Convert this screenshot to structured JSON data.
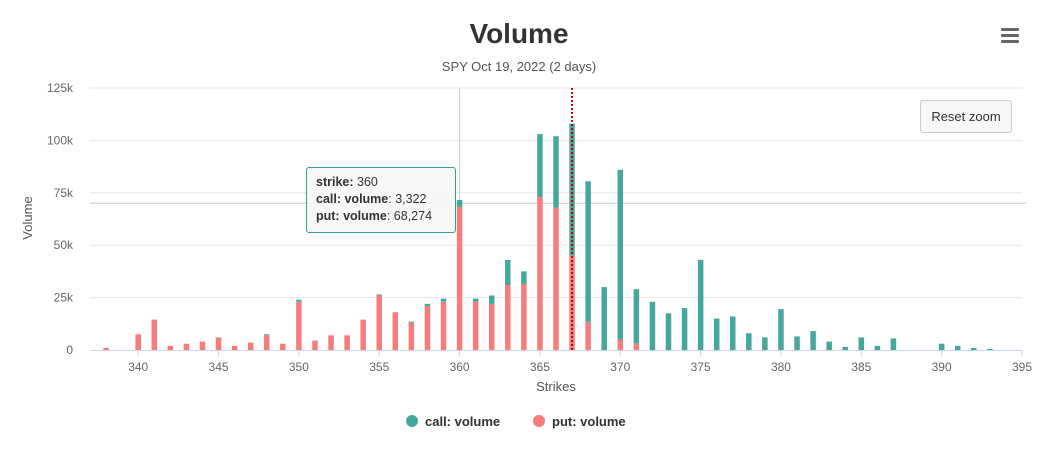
{
  "header": {
    "title": "Volume",
    "subtitle": "SPY Oct 19, 2022 (2 days)",
    "menu_icon": "hamburger-menu-icon",
    "reset_zoom_label": "Reset zoom"
  },
  "colors": {
    "call": "#46a89b",
    "put": "#f67d7c",
    "grid": "#e6e6e6",
    "marker": "#cc0000",
    "crosshair": "#cccccc"
  },
  "chart_data": {
    "type": "bar",
    "stacked": true,
    "title": "Volume",
    "subtitle": "SPY Oct 19, 2022 (2 days)",
    "xlabel": "Strikes",
    "ylabel": "Volume",
    "xlim": [
      337,
      395
    ],
    "ylim": [
      0,
      125000
    ],
    "x_ticks": [
      340,
      345,
      350,
      355,
      360,
      365,
      370,
      375,
      380,
      385,
      390,
      395
    ],
    "y_ticks": [
      {
        "value": 0,
        "label": "0"
      },
      {
        "value": 25000,
        "label": "25k"
      },
      {
        "value": 50000,
        "label": "50k"
      },
      {
        "value": 75000,
        "label": "75k"
      },
      {
        "value": 100000,
        "label": "100k"
      },
      {
        "value": 125000,
        "label": "125k"
      }
    ],
    "strikes": [
      338,
      340,
      341,
      342,
      343,
      344,
      345,
      346,
      347,
      348,
      349,
      350,
      351,
      352,
      353,
      354,
      355,
      356,
      357,
      358,
      359,
      360,
      361,
      362,
      363,
      364,
      365,
      366,
      367,
      368,
      369,
      370,
      371,
      372,
      373,
      374,
      375,
      376,
      377,
      378,
      379,
      380,
      381,
      382,
      383,
      384,
      385,
      386,
      387,
      390,
      391,
      392,
      393
    ],
    "series": [
      {
        "name": "call: volume",
        "values": [
          0,
          0,
          0,
          0,
          0,
          0,
          0,
          0,
          0,
          500,
          0,
          1000,
          0,
          0,
          0,
          0,
          500,
          0,
          500,
          1000,
          1500,
          3322,
          1500,
          4000,
          12000,
          6000,
          30000,
          34000,
          63000,
          67000,
          30000,
          81000,
          26000,
          23000,
          17500,
          20000,
          43000,
          15000,
          16000,
          8000,
          6000,
          19500,
          6500,
          9000,
          4000,
          1500,
          6000,
          2000,
          5500,
          3000,
          2000,
          1000,
          500
        ]
      },
      {
        "name": "put: volume",
        "values": [
          1000,
          7500,
          14500,
          2000,
          3000,
          4000,
          6000,
          2000,
          3500,
          7000,
          3000,
          23000,
          4500,
          7000,
          7000,
          14500,
          26000,
          18000,
          13000,
          21000,
          23000,
          68274,
          23000,
          22000,
          31000,
          31500,
          73000,
          68000,
          45000,
          13500,
          0,
          5000,
          3000,
          0,
          0,
          0,
          0,
          0,
          0,
          0,
          0,
          0,
          0,
          0,
          0,
          0,
          0,
          0,
          0,
          0,
          0,
          0,
          0
        ]
      }
    ],
    "current_price_marker": 367,
    "legend": [
      "call: volume",
      "put: volume"
    ],
    "legend_position": "bottom-center"
  },
  "tooltip": {
    "strike_label": "strike:",
    "strike_value": "360",
    "call_label": "call: volume",
    "call_value": "3,322",
    "put_label": "put: volume",
    "put_value": "68,274"
  },
  "legend": {
    "call_label": "call: volume",
    "put_label": "put: volume"
  }
}
